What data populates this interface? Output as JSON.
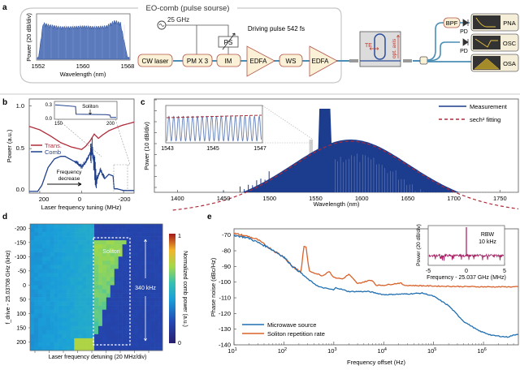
{
  "panels": {
    "a": {
      "label": "a",
      "box_title": "EO-comb (pulse sourse)",
      "rf_source": "25 GHz",
      "driving_pulse": "Driving pulse 542 fs",
      "blocks": [
        "CW laser",
        "PM X 3",
        "IM",
        "EDFA",
        "WS",
        "EDFA"
      ],
      "ps": "PS",
      "chip_labels": {
        "te": "TE",
        "axis": "opt. axis"
      },
      "outputs": [
        {
          "filter": "BPF",
          "detector": "PD",
          "instrument": "PNA"
        },
        {
          "filter": "",
          "detector": "PD",
          "instrument": "OSC"
        },
        {
          "filter": "",
          "detector": "",
          "instrument": "OSA"
        }
      ],
      "colors": {
        "block_fill": "#fbf1d6",
        "block_stroke": "#b3564a",
        "fiber": "#4a8db5",
        "instrument": "#333333",
        "trace": "#e5c040"
      }
    },
    "b": {
      "label": "b",
      "inset_annotation": "Soliton",
      "arrow_text_1": "Frequency",
      "arrow_text_2": "decrease"
    },
    "c": {
      "label": "c"
    },
    "d": {
      "label": "d",
      "annotation": "Soliton",
      "span_label": "340 kHz"
    },
    "e": {
      "label": "e",
      "inset_annotation_1": "RBW",
      "inset_annotation_2": "10 kHz"
    }
  },
  "chart_data": [
    {
      "id": "a-inset",
      "type": "area",
      "xlabel": "Wavelength (nm)",
      "ylabel": "Power (20 dB/div)",
      "xlim": [
        1552,
        1568
      ],
      "xticks": [
        "1552",
        "1560",
        "1568"
      ],
      "color": "#3d63b0",
      "x": [
        1552.2,
        1553,
        1554,
        1556,
        1558,
        1560,
        1562,
        1564,
        1565.5,
        1566.5,
        1567.7
      ],
      "y": [
        0.05,
        0.9,
        0.85,
        0.8,
        0.8,
        0.82,
        0.8,
        0.82,
        0.95,
        0.9,
        0.05
      ]
    },
    {
      "id": "b",
      "type": "line",
      "xlabel": "Laser frequency tuning (MHz)",
      "ylabel": "Power (a.u.)",
      "xlim": [
        250,
        -250
      ],
      "ylim": [
        -0.02,
        1.08
      ],
      "xticks": [
        "200",
        "0",
        "-200"
      ],
      "yticks": [
        "0.0",
        "0.5",
        "1.0"
      ],
      "series": [
        {
          "name": "Trans.",
          "color": "#b02b3a",
          "x": [
            250,
            200,
            150,
            100,
            50,
            0,
            -20,
            -40,
            -60,
            -80,
            -100,
            -130,
            -160,
            -190,
            -220,
            -250
          ],
          "y": [
            0.76,
            0.72,
            0.65,
            0.57,
            0.52,
            0.49,
            0.53,
            0.59,
            0.67,
            0.62,
            0.66,
            0.71,
            0.74,
            0.77,
            0.79,
            0.81
          ]
        },
        {
          "name": "Comb",
          "color": "#1f3f8c",
          "x": [
            250,
            210,
            190,
            160,
            130,
            100,
            80,
            50,
            20,
            0,
            -20,
            -50,
            -70,
            -90,
            -110,
            -130,
            -150,
            -155,
            -170,
            -200,
            -250
          ],
          "y": [
            0.0,
            0.0,
            0.07,
            0.28,
            0.38,
            0.41,
            0.41,
            0.37,
            0.33,
            0.29,
            0.34,
            0.5,
            0.12,
            0.25,
            0.15,
            0.2,
            0.18,
            0.03,
            0.03,
            0.01,
            0.01
          ]
        }
      ],
      "legend": "center-left",
      "inset": {
        "xlim": [
          145,
          205
        ],
        "ylim": [
          0,
          0.3
        ],
        "xticks": [
          "150",
          "200"
        ],
        "yticks": [
          "0.0",
          "0.3"
        ],
        "x": [
          145,
          165,
          165.5,
          195,
          199,
          199.5,
          205
        ],
        "y": [
          0.25,
          0.22,
          0.08,
          0.07,
          0.06,
          0.02,
          0.02
        ]
      }
    },
    {
      "id": "c",
      "type": "area",
      "xlabel": "Wavelength (nm)",
      "ylabel": "Power (10 dB/div)",
      "xlim": [
        1375,
        1770
      ],
      "xticks": [
        "1400",
        "1450",
        "1500",
        "1550",
        "1600",
        "1650",
        "1700",
        "1750"
      ],
      "series": [
        {
          "name": "Measurement",
          "color": "#1c3c8e"
        },
        {
          "name": "sech² fitting",
          "color": "#b02b3a",
          "dashed": true
        }
      ],
      "fit_peak_nm": 1588,
      "pump_band_nm": [
        1553,
        1567
      ],
      "highlight_band_nm": [
        1543,
        1547
      ],
      "legend": "top-right",
      "inset": {
        "xlim": [
          1543,
          1547
        ],
        "xticks": [
          "1543",
          "1545",
          "1547"
        ],
        "num_lines": 20
      }
    },
    {
      "id": "d",
      "type": "heatmap",
      "xlabel": "Laser frequency detuning (20 MHz/div)",
      "ylabel": "f_drive - 25.03708 GHz (kHz)",
      "ylim": [
        -215,
        230
      ],
      "yticks": [
        "-200",
        "-150",
        "-100",
        "-50",
        "0",
        "50",
        "100",
        "150",
        "200"
      ],
      "colorbar": {
        "label": "Normalized comb power (a.u.)",
        "min": "0",
        "max": "1"
      },
      "soliton_range_khz": [
        -160,
        180
      ]
    },
    {
      "id": "e",
      "type": "line",
      "xlabel": "Frequency offset (Hz)",
      "ylabel": "Phase noise (dBc/Hz)",
      "xscale": "log",
      "xlim": [
        10,
        5000000
      ],
      "ylim": [
        -140,
        -66
      ],
      "yticks": [
        "-70",
        "-80",
        "-90",
        "-100",
        "-110",
        "-120",
        "-130",
        "-140"
      ],
      "xticks": [
        "10^1",
        "10^2",
        "10^3",
        "10^4",
        "10^5",
        "10^6"
      ],
      "series": [
        {
          "name": "Microwave source",
          "color": "#1f6eb0",
          "x": [
            10,
            20,
            50,
            100,
            150,
            200,
            300,
            500,
            1000,
            1100,
            2000,
            5000,
            10000,
            30000,
            60000,
            100000,
            200000,
            400000,
            800000,
            1500000,
            3000000,
            5000000
          ],
          "y": [
            -70,
            -72,
            -78,
            -84,
            -90,
            -93,
            -98,
            -103,
            -105,
            -103.5,
            -106,
            -106,
            -108,
            -107.5,
            -107,
            -109,
            -115,
            -125,
            -131,
            -134,
            -135,
            -133
          ]
        },
        {
          "name": "Soliton repetition rate",
          "color": "#d9622b",
          "x": [
            10,
            20,
            30,
            50,
            100,
            150,
            220,
            250,
            280,
            320,
            400,
            600,
            800,
            1000,
            1500,
            2000,
            3000,
            5000,
            6000,
            7000,
            10000,
            22000,
            25000,
            100000,
            1000000,
            5000000
          ],
          "y": [
            -69,
            -71,
            -73,
            -78,
            -84,
            -90,
            -94,
            -77,
            -78,
            -93,
            -94,
            -96,
            -93,
            -97,
            -98,
            -95,
            -101,
            -99,
            -99,
            -102,
            -102,
            -100.5,
            -102,
            -102.5,
            -103,
            -103
          ]
        }
      ],
      "legend": "bottom-left",
      "inset": {
        "xlabel": "Frequency - 25.037 GHz (MHz)",
        "ylabel": "Power (20 dB/div)",
        "xlim": [
          -5,
          5
        ],
        "xticks": [
          "-5",
          "0",
          "5"
        ],
        "color": "#a3155c",
        "peak_mhz": 0
      }
    }
  ]
}
